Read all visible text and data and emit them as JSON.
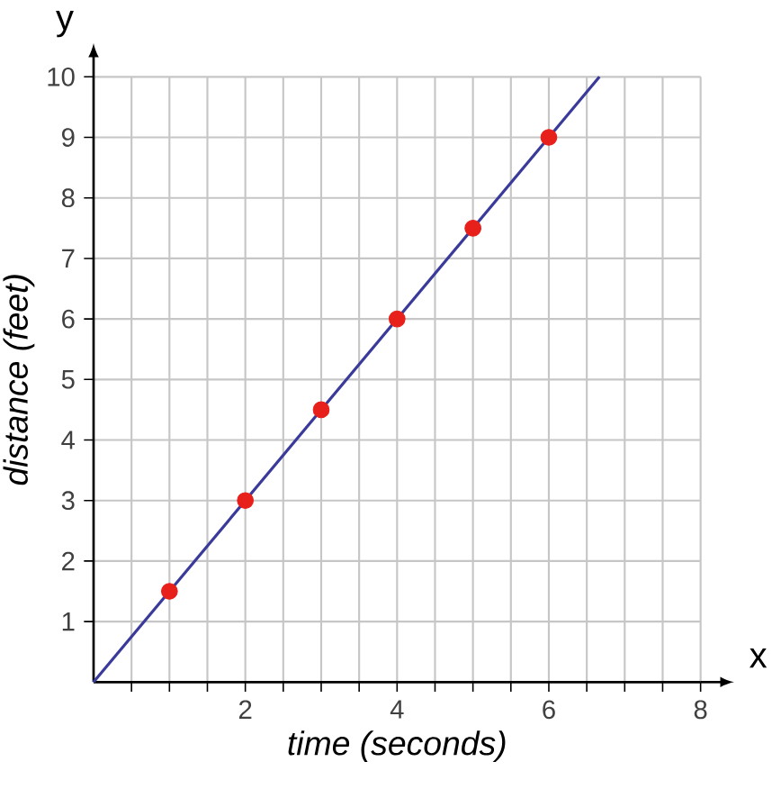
{
  "chart_data": {
    "type": "scatter",
    "xlabel": "*time (seconds)*",
    "ylabel": "*distance (feet)*",
    "annotations": [
      "x",
      "y"
    ],
    "xlim": [
      0,
      8
    ],
    "ylim": [
      0,
      10
    ],
    "xticks": [
      {
        "value": 0.5,
        "label": null
      },
      {
        "value": 1,
        "label": null
      },
      {
        "value": 1.5,
        "label": null
      },
      2,
      {
        "value": 2.5,
        "label": null
      },
      {
        "value": 3,
        "label": null
      },
      {
        "value": 3.5,
        "label": null
      },
      4,
      {
        "value": 4.5,
        "label": null
      },
      {
        "value": 5,
        "label": null
      },
      {
        "value": 5.5,
        "label": null
      },
      6,
      {
        "value": 6.5,
        "label": null
      },
      {
        "value": 7,
        "label": null
      },
      {
        "value": 7.5,
        "label": null
      },
      8
    ],
    "yticks": [
      1,
      2,
      3,
      4,
      5,
      6,
      7,
      8,
      9,
      10
    ],
    "grid": true,
    "series": [
      {
        "type": "line",
        "color": "#3a3a9a",
        "x": [
          0,
          6.667
        ],
        "values": [
          0,
          10
        ],
        "marker": "none"
      },
      {
        "color": "#e8201c",
        "x": [
          1,
          2,
          3,
          4,
          5,
          6
        ],
        "values": [
          1.5,
          3,
          4.5,
          6,
          7.5,
          9
        ],
        "marker": "circle"
      }
    ]
  }
}
